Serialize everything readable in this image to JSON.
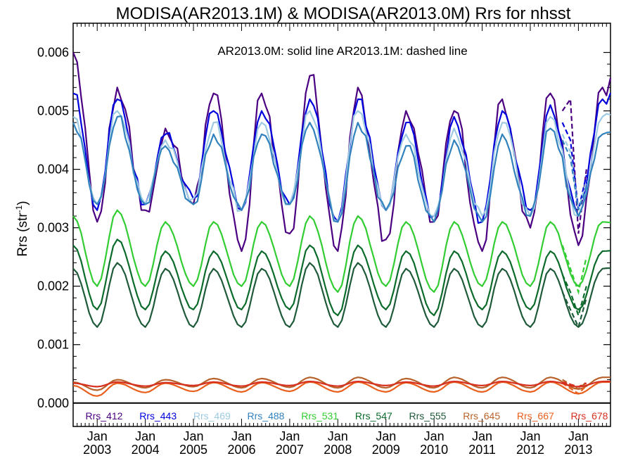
{
  "chart_data": {
    "type": "line",
    "title": "MODISA(AR2013.1M) & MODISA(AR2013.0M)  Rrs for nhsst",
    "ylabel": "Rrs (str",
    "ylabel_sup": "-1",
    "ylabel_close": ")",
    "annotation": "AR2013.0M: solid line   AR2013.1M: dashed line",
    "x_start": "2002-07",
    "x_end": "2013-09",
    "ylim": [
      -0.0004,
      0.0065
    ],
    "yticks": [
      "0.000",
      "0.001",
      "0.002",
      "0.003",
      "0.004",
      "0.005",
      "0.006"
    ],
    "ytick_values": [
      0,
      0.001,
      0.002,
      0.003,
      0.004,
      0.005,
      0.006
    ],
    "xticks": [
      {
        "month": "Jan",
        "year": "2003",
        "date": "2003-01"
      },
      {
        "month": "Jan",
        "year": "2004",
        "date": "2004-01"
      },
      {
        "month": "Jan",
        "year": "2005",
        "date": "2005-01"
      },
      {
        "month": "Jan",
        "year": "2006",
        "date": "2006-01"
      },
      {
        "month": "Jan",
        "year": "2007",
        "date": "2007-01"
      },
      {
        "month": "Jan",
        "year": "2008",
        "date": "2008-01"
      },
      {
        "month": "Jan",
        "year": "2009",
        "date": "2009-01"
      },
      {
        "month": "Jan",
        "year": "2010",
        "date": "2010-01"
      },
      {
        "month": "Jan",
        "year": "2011",
        "date": "2011-01"
      },
      {
        "month": "Jan",
        "year": "2012",
        "date": "2012-01"
      },
      {
        "month": "Jan",
        "year": "2013",
        "date": "2013-01"
      }
    ],
    "dashed_start": "2012-09",
    "series": [
      {
        "name": "Rrs_412",
        "color": "#4b0082",
        "peak_dates": [
          "2002-07",
          "2003-06",
          "2004-06",
          "2005-06",
          "2006-06",
          "2007-06",
          "2008-06",
          "2009-06",
          "2010-06",
          "2011-06",
          "2012-06",
          "2013-07"
        ],
        "peaks": [
          0.006,
          0.0054,
          0.0047,
          0.0053,
          0.0053,
          0.0056,
          0.0054,
          0.005,
          0.005,
          0.0052,
          0.0053,
          0.0054
        ],
        "trough_dates": [
          "2003-01",
          "2004-01",
          "2005-01",
          "2006-01",
          "2007-01",
          "2008-01",
          "2009-01",
          "2010-01",
          "2011-01",
          "2012-01",
          "2013-01"
        ],
        "troughs": [
          0.0031,
          0.0033,
          0.0034,
          0.0026,
          0.0029,
          0.0026,
          0.0028,
          0.0031,
          0.0026,
          0.003,
          0.0027
        ],
        "dashed_points": [
          [
            "2012-09",
            0.005
          ],
          [
            "2012-11",
            0.0052
          ],
          [
            "2013-01",
            0.0029
          ],
          [
            "2013-03",
            0.004
          ]
        ]
      },
      {
        "name": "Rrs_443",
        "color": "#0000dd",
        "peak_dates": [
          "2002-07",
          "2003-06",
          "2004-06",
          "2005-06",
          "2006-06",
          "2007-06",
          "2008-06",
          "2009-06",
          "2010-06",
          "2011-06",
          "2012-06",
          "2013-07"
        ],
        "peaks": [
          0.0053,
          0.0052,
          0.0046,
          0.005,
          0.005,
          0.0052,
          0.0052,
          0.0048,
          0.0049,
          0.005,
          0.0051,
          0.0052
        ],
        "trough_dates": [
          "2003-01",
          "2004-01",
          "2005-01",
          "2006-01",
          "2007-01",
          "2008-01",
          "2009-01",
          "2010-01",
          "2011-01",
          "2012-01",
          "2013-01"
        ],
        "troughs": [
          0.0033,
          0.0034,
          0.0035,
          0.0033,
          0.0034,
          0.0031,
          0.0033,
          0.0032,
          0.0031,
          0.0033,
          0.0032
        ],
        "dashed_points": [
          [
            "2012-09",
            0.0048
          ],
          [
            "2012-11",
            0.0045
          ],
          [
            "2013-01",
            0.0033
          ],
          [
            "2013-03",
            0.0039
          ]
        ]
      },
      {
        "name": "Rrs_469",
        "color": "#9ecae1",
        "peak_dates": [
          "2002-07",
          "2003-06",
          "2004-06",
          "2005-06",
          "2006-06",
          "2007-06",
          "2008-06",
          "2009-06",
          "2010-06",
          "2011-06",
          "2012-06",
          "2013-07"
        ],
        "peaks": [
          0.0049,
          0.005,
          0.0045,
          0.0048,
          0.0048,
          0.005,
          0.005,
          0.0046,
          0.0047,
          0.0048,
          0.0049,
          0.0049
        ],
        "trough_dates": [
          "2003-01",
          "2004-01",
          "2005-01",
          "2006-01",
          "2007-01",
          "2008-01",
          "2009-01",
          "2010-01",
          "2011-01",
          "2012-01",
          "2013-01"
        ],
        "troughs": [
          0.0034,
          0.0034,
          0.0035,
          0.0033,
          0.0034,
          0.0031,
          0.0033,
          0.0032,
          0.0032,
          0.0032,
          0.0032
        ],
        "dashed_points": [
          [
            "2012-09",
            0.0046
          ],
          [
            "2012-11",
            0.0043
          ],
          [
            "2013-01",
            0.0033
          ],
          [
            "2013-03",
            0.0038
          ]
        ]
      },
      {
        "name": "Rrs_488",
        "color": "#3182bd",
        "peak_dates": [
          "2002-07",
          "2003-06",
          "2004-06",
          "2005-06",
          "2006-06",
          "2007-06",
          "2008-06",
          "2009-06",
          "2010-06",
          "2011-06",
          "2012-06",
          "2013-07"
        ],
        "peaks": [
          0.0048,
          0.0049,
          0.0044,
          0.0046,
          0.0046,
          0.0048,
          0.0048,
          0.0044,
          0.0045,
          0.0046,
          0.0047,
          0.0046
        ],
        "trough_dates": [
          "2003-01",
          "2004-01",
          "2005-01",
          "2006-01",
          "2007-01",
          "2008-01",
          "2009-01",
          "2010-01",
          "2011-01",
          "2012-01",
          "2013-01"
        ],
        "troughs": [
          0.0034,
          0.0034,
          0.0034,
          0.0033,
          0.0034,
          0.0031,
          0.0033,
          0.0031,
          0.0031,
          0.0032,
          0.0032
        ],
        "dashed_points": [
          [
            "2012-09",
            0.0045
          ],
          [
            "2012-11",
            0.0042
          ],
          [
            "2013-01",
            0.0033
          ],
          [
            "2013-03",
            0.0037
          ]
        ]
      },
      {
        "name": "Rrs_531",
        "color": "#32cd32",
        "peak_dates": [
          "2002-07",
          "2003-06",
          "2004-06",
          "2005-06",
          "2006-06",
          "2007-06",
          "2008-06",
          "2009-06",
          "2010-06",
          "2011-06",
          "2012-06",
          "2013-07"
        ],
        "peaks": [
          0.0032,
          0.0033,
          0.0031,
          0.0031,
          0.0031,
          0.0032,
          0.0032,
          0.0031,
          0.0031,
          0.0031,
          0.0031,
          0.0031
        ],
        "trough_dates": [
          "2003-01",
          "2004-01",
          "2005-01",
          "2006-01",
          "2007-01",
          "2008-01",
          "2009-01",
          "2010-01",
          "2011-01",
          "2012-01",
          "2013-01"
        ],
        "troughs": [
          0.002,
          0.002,
          0.002,
          0.002,
          0.002,
          0.0019,
          0.002,
          0.0019,
          0.002,
          0.002,
          0.002
        ],
        "dashed_points": [
          [
            "2012-09",
            0.0027
          ],
          [
            "2012-11",
            0.0023
          ],
          [
            "2013-01",
            0.0019
          ],
          [
            "2013-03",
            0.0025
          ]
        ]
      },
      {
        "name": "Rrs_547",
        "color": "#0b6b2b",
        "peak_dates": [
          "2002-07",
          "2003-06",
          "2004-06",
          "2005-06",
          "2006-06",
          "2007-06",
          "2008-06",
          "2009-06",
          "2010-06",
          "2011-06",
          "2012-06",
          "2013-07"
        ],
        "peaks": [
          0.0027,
          0.0028,
          0.0026,
          0.0026,
          0.0026,
          0.0027,
          0.0027,
          0.0026,
          0.0026,
          0.0026,
          0.0026,
          0.0026
        ],
        "trough_dates": [
          "2003-01",
          "2004-01",
          "2005-01",
          "2006-01",
          "2007-01",
          "2008-01",
          "2009-01",
          "2010-01",
          "2011-01",
          "2012-01",
          "2013-01"
        ],
        "troughs": [
          0.0016,
          0.0016,
          0.0016,
          0.0016,
          0.0016,
          0.0015,
          0.0016,
          0.0015,
          0.0016,
          0.0016,
          0.0016
        ],
        "dashed_points": [
          [
            "2012-09",
            0.0022
          ],
          [
            "2012-11",
            0.0019
          ],
          [
            "2013-01",
            0.0015
          ],
          [
            "2013-03",
            0.002
          ]
        ]
      },
      {
        "name": "Rrs_555",
        "color": "#1f5a3a",
        "peak_dates": [
          "2002-07",
          "2003-06",
          "2004-06",
          "2005-06",
          "2006-06",
          "2007-06",
          "2008-06",
          "2009-06",
          "2010-06",
          "2011-06",
          "2012-06",
          "2013-07"
        ],
        "peaks": [
          0.0023,
          0.0024,
          0.0023,
          0.0023,
          0.0023,
          0.0024,
          0.0024,
          0.0023,
          0.0023,
          0.0023,
          0.0023,
          0.0023
        ],
        "trough_dates": [
          "2003-01",
          "2004-01",
          "2005-01",
          "2006-01",
          "2007-01",
          "2008-01",
          "2009-01",
          "2010-01",
          "2011-01",
          "2012-01",
          "2013-01"
        ],
        "troughs": [
          0.0013,
          0.0013,
          0.0013,
          0.0013,
          0.0013,
          0.0013,
          0.0013,
          0.0013,
          0.0013,
          0.0013,
          0.0013
        ],
        "dashed_points": [
          [
            "2012-09",
            0.0019
          ],
          [
            "2012-11",
            0.0016
          ],
          [
            "2013-01",
            0.0013
          ],
          [
            "2013-03",
            0.0018
          ]
        ]
      },
      {
        "name": "Rrs_645",
        "color": "#b8612a",
        "peak_dates": [
          "2002-07",
          "2003-06",
          "2004-06",
          "2005-06",
          "2006-06",
          "2007-06",
          "2008-06",
          "2009-06",
          "2010-06",
          "2011-06",
          "2012-06",
          "2013-07"
        ],
        "peaks": [
          0.00036,
          0.0004,
          0.0004,
          0.00042,
          0.00042,
          0.00044,
          0.00044,
          0.00042,
          0.00044,
          0.00044,
          0.00044,
          0.00044
        ],
        "trough_dates": [
          "2003-01",
          "2004-01",
          "2005-01",
          "2006-01",
          "2007-01",
          "2008-01",
          "2009-01",
          "2010-01",
          "2011-01",
          "2012-01",
          "2013-01"
        ],
        "troughs": [
          0.00022,
          0.00026,
          0.00028,
          0.00026,
          0.00027,
          0.00026,
          0.00026,
          0.00026,
          0.00026,
          0.00026,
          0.00024
        ],
        "dashed_points": [
          [
            "2012-09",
            0.0004
          ],
          [
            "2013-01",
            0.00024
          ],
          [
            "2013-03",
            0.00036
          ]
        ]
      },
      {
        "name": "Rrs_667",
        "color": "#e8601c",
        "peak_dates": [
          "2002-07",
          "2003-06",
          "2004-06",
          "2005-06",
          "2006-06",
          "2007-06",
          "2008-06",
          "2009-06",
          "2010-06",
          "2011-06",
          "2012-06",
          "2013-07"
        ],
        "peaks": [
          0.0003,
          0.00034,
          0.00034,
          0.00035,
          0.00035,
          0.00036,
          0.00036,
          0.00035,
          0.00036,
          0.00036,
          0.00036,
          0.00036
        ],
        "trough_dates": [
          "2003-01",
          "2004-01",
          "2005-01",
          "2006-01",
          "2007-01",
          "2008-01",
          "2009-01",
          "2010-01",
          "2011-01",
          "2012-01",
          "2013-01"
        ],
        "troughs": [
          0.00012,
          0.00018,
          0.0002,
          0.00019,
          0.0002,
          0.00019,
          0.00019,
          0.00019,
          0.00019,
          0.00019,
          0.00016
        ],
        "dashed_points": [
          [
            "2012-09",
            0.00034
          ],
          [
            "2013-01",
            0.00016
          ],
          [
            "2013-03",
            0.0003
          ]
        ]
      },
      {
        "name": "Rrs_678",
        "color": "#d7301f",
        "peak_dates": [
          "2002-07",
          "2003-06",
          "2004-06",
          "2005-06",
          "2006-06",
          "2007-06",
          "2008-06",
          "2009-06",
          "2010-06",
          "2011-06",
          "2012-06",
          "2013-07"
        ],
        "peaks": [
          0.00034,
          0.00036,
          0.00035,
          0.00036,
          0.00036,
          0.00037,
          0.00037,
          0.00036,
          0.00037,
          0.00037,
          0.00037,
          0.00037
        ],
        "trough_dates": [
          "2003-01",
          "2004-01",
          "2005-01",
          "2006-01",
          "2007-01",
          "2008-01",
          "2009-01",
          "2010-01",
          "2011-01",
          "2012-01",
          "2013-01"
        ],
        "troughs": [
          0.00028,
          0.00029,
          0.0003,
          0.00029,
          0.0003,
          0.00029,
          0.0003,
          0.00029,
          0.0003,
          0.0003,
          0.00028
        ],
        "dashed_points": [
          [
            "2012-09",
            0.00036
          ],
          [
            "2013-01",
            0.00028
          ],
          [
            "2013-03",
            0.00034
          ]
        ]
      }
    ]
  }
}
